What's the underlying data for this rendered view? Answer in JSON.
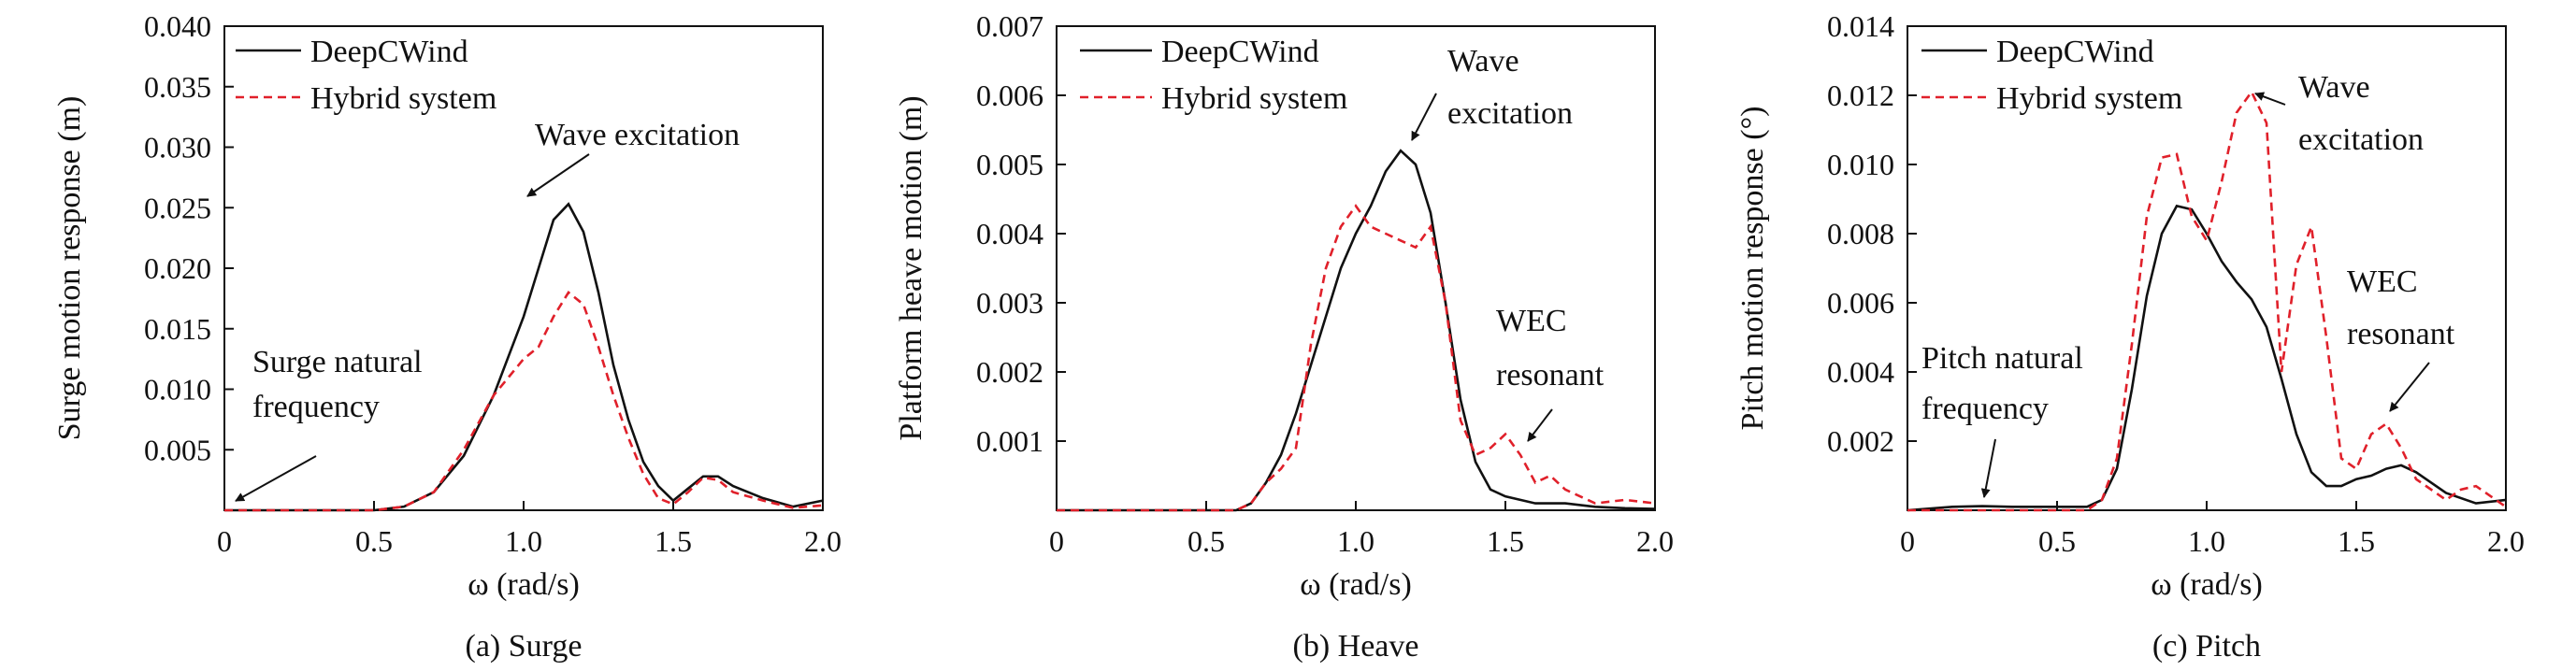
{
  "colors": {
    "deepcwind": "#111111",
    "hybrid": "#e0202a"
  },
  "chart_data": [
    {
      "type": "line",
      "title": "",
      "caption": "(a) Surge",
      "xlabel": "ω (rad/s)",
      "ylabel": "Surge motion response (m)",
      "xlim": [
        0,
        2.0
      ],
      "ylim": [
        0,
        0.04
      ],
      "xticks": [
        0,
        0.5,
        1.0,
        1.5,
        2.0
      ],
      "xtick_labels": [
        "0",
        "0.5",
        "1.0",
        "1.5",
        "2.0"
      ],
      "yticks": [
        0.005,
        0.01,
        0.015,
        0.02,
        0.025,
        0.03,
        0.035,
        0.04
      ],
      "ytick_labels": [
        "0.005",
        "0.010",
        "0.015",
        "0.020",
        "0.025",
        "0.030",
        "0.035",
        "0.040"
      ],
      "legend": {
        "position": "top-left",
        "entries": [
          "DeepCWind",
          "Hybrid system"
        ]
      },
      "annotations": [
        {
          "lines": [
            "Wave excitation"
          ],
          "target": [
            1.17,
            0.0255
          ]
        },
        {
          "lines": [
            "Surge natural",
            "frequency"
          ],
          "target": [
            0.05,
            0.0005
          ]
        }
      ],
      "series": [
        {
          "name": "DeepCWind",
          "x": [
            0,
            0.5,
            0.6,
            0.7,
            0.8,
            0.9,
            1.0,
            1.05,
            1.1,
            1.15,
            1.2,
            1.25,
            1.3,
            1.35,
            1.4,
            1.45,
            1.5,
            1.55,
            1.6,
            1.65,
            1.7,
            1.8,
            1.9,
            2.0
          ],
          "y": [
            0,
            0,
            0.0003,
            0.0015,
            0.0045,
            0.0095,
            0.016,
            0.02,
            0.024,
            0.0253,
            0.023,
            0.018,
            0.012,
            0.0075,
            0.004,
            0.002,
            0.0008,
            0.0018,
            0.0028,
            0.0028,
            0.002,
            0.001,
            0.0003,
            0.0008
          ]
        },
        {
          "name": "Hybrid system",
          "x": [
            0,
            0.5,
            0.6,
            0.7,
            0.8,
            0.9,
            1.0,
            1.05,
            1.1,
            1.15,
            1.2,
            1.25,
            1.3,
            1.35,
            1.4,
            1.45,
            1.5,
            1.55,
            1.6,
            1.65,
            1.7,
            1.8,
            1.9,
            2.0
          ],
          "y": [
            0,
            0,
            0.0003,
            0.0015,
            0.005,
            0.0095,
            0.0125,
            0.0135,
            0.016,
            0.018,
            0.017,
            0.0135,
            0.0095,
            0.006,
            0.003,
            0.001,
            0.0005,
            0.0015,
            0.0027,
            0.0025,
            0.0015,
            0.0008,
            0.0002,
            0.0004
          ]
        }
      ]
    },
    {
      "type": "line",
      "title": "",
      "caption": "(b) Heave",
      "xlabel": "ω (rad/s)",
      "ylabel": "Platform heave motion (m)",
      "xlim": [
        0,
        2.0
      ],
      "ylim": [
        0,
        0.007
      ],
      "xticks": [
        0,
        0.5,
        1.0,
        1.5,
        2.0
      ],
      "xtick_labels": [
        "0",
        "0.5",
        "1.0",
        "1.5",
        "2.0"
      ],
      "yticks": [
        0.001,
        0.002,
        0.003,
        0.004,
        0.005,
        0.006,
        0.007
      ],
      "ytick_labels": [
        "0.001",
        "0.002",
        "0.003",
        "0.004",
        "0.005",
        "0.006",
        "0.007"
      ],
      "legend": {
        "position": "top-left",
        "entries": [
          "DeepCWind",
          "Hybrid system"
        ]
      },
      "annotations": [
        {
          "lines": [
            "Wave",
            "excitation"
          ],
          "target": [
            1.18,
            0.0052
          ]
        },
        {
          "lines": [
            "WEC",
            "resonant"
          ],
          "target": [
            1.5,
            0.0008
          ]
        }
      ],
      "series": [
        {
          "name": "DeepCWind",
          "x": [
            0,
            0.6,
            0.65,
            0.7,
            0.75,
            0.8,
            0.85,
            0.9,
            0.95,
            1.0,
            1.05,
            1.1,
            1.15,
            1.2,
            1.25,
            1.3,
            1.35,
            1.4,
            1.45,
            1.5,
            1.6,
            1.7,
            1.8,
            1.9,
            2.0
          ],
          "y": [
            0,
            0,
            0.0001,
            0.0004,
            0.0008,
            0.0014,
            0.0021,
            0.0028,
            0.0035,
            0.004,
            0.0044,
            0.0049,
            0.0052,
            0.005,
            0.0043,
            0.003,
            0.0016,
            0.0007,
            0.0003,
            0.0002,
            0.0001,
            0.0001,
            5e-05,
            3e-05,
            2e-05
          ]
        },
        {
          "name": "Hybrid system",
          "x": [
            0,
            0.6,
            0.65,
            0.7,
            0.75,
            0.8,
            0.85,
            0.9,
            0.95,
            1.0,
            1.05,
            1.1,
            1.15,
            1.2,
            1.25,
            1.3,
            1.35,
            1.4,
            1.45,
            1.5,
            1.55,
            1.6,
            1.65,
            1.7,
            1.8,
            1.9,
            2.0
          ],
          "y": [
            0,
            0,
            0.0001,
            0.0004,
            0.0006,
            0.0009,
            0.0024,
            0.0035,
            0.0041,
            0.0044,
            0.0041,
            0.004,
            0.0039,
            0.0038,
            0.0041,
            0.003,
            0.0013,
            0.0008,
            0.0009,
            0.0011,
            0.0008,
            0.0004,
            0.0005,
            0.0003,
            0.0001,
            0.00015,
            0.0001
          ]
        }
      ]
    },
    {
      "type": "line",
      "title": "",
      "caption": "(c) Pitch",
      "xlabel": "ω (rad/s)",
      "ylabel": "Pitch motion response (°)",
      "xlim": [
        0,
        2.0
      ],
      "ylim": [
        0,
        0.014
      ],
      "xticks": [
        0,
        0.5,
        1.0,
        1.5,
        2.0
      ],
      "xtick_labels": [
        "0",
        "0.5",
        "1.0",
        "1.5",
        "2.0"
      ],
      "yticks": [
        0.002,
        0.004,
        0.006,
        0.008,
        0.01,
        0.012,
        0.014
      ],
      "ytick_labels": [
        "0.002",
        "0.004",
        "0.006",
        "0.008",
        "0.010",
        "0.012",
        "0.014"
      ],
      "legend": {
        "position": "top-left",
        "entries": [
          "DeepCWind",
          "Hybrid system"
        ]
      },
      "annotations": [
        {
          "lines": [
            "Wave",
            "excitation"
          ],
          "target": [
            1.17,
            0.0121
          ]
        },
        {
          "lines": [
            "WEC",
            "resonant"
          ],
          "target": [
            1.58,
            0.0027
          ]
        },
        {
          "lines": [
            "Pitch natural",
            "frequency"
          ],
          "target": [
            0.27,
            0.0001
          ]
        }
      ],
      "series": [
        {
          "name": "DeepCWind",
          "x": [
            0,
            0.15,
            0.25,
            0.35,
            0.6,
            0.65,
            0.7,
            0.75,
            0.8,
            0.85,
            0.9,
            0.95,
            1.0,
            1.05,
            1.1,
            1.15,
            1.2,
            1.25,
            1.3,
            1.35,
            1.4,
            1.45,
            1.5,
            1.55,
            1.6,
            1.65,
            1.7,
            1.8,
            1.9,
            2.0
          ],
          "y": [
            0,
            0.0001,
            0.00012,
            0.0001,
            0.0001,
            0.0003,
            0.0012,
            0.0035,
            0.0062,
            0.008,
            0.0088,
            0.0087,
            0.008,
            0.0072,
            0.0066,
            0.0061,
            0.0053,
            0.0038,
            0.0022,
            0.0011,
            0.0007,
            0.0007,
            0.0009,
            0.001,
            0.0012,
            0.0013,
            0.0011,
            0.0005,
            0.0002,
            0.0003
          ]
        },
        {
          "name": "Hybrid system",
          "x": [
            0,
            0.6,
            0.65,
            0.7,
            0.75,
            0.8,
            0.85,
            0.9,
            0.95,
            1.0,
            1.05,
            1.1,
            1.15,
            1.2,
            1.25,
            1.3,
            1.35,
            1.4,
            1.45,
            1.5,
            1.55,
            1.6,
            1.65,
            1.7,
            1.8,
            1.85,
            1.9,
            1.95,
            2.0
          ],
          "y": [
            0,
            0,
            0.0003,
            0.0015,
            0.0048,
            0.0085,
            0.0102,
            0.0103,
            0.0085,
            0.0078,
            0.0095,
            0.0115,
            0.0121,
            0.0112,
            0.004,
            0.0071,
            0.0082,
            0.005,
            0.0015,
            0.0012,
            0.0022,
            0.0025,
            0.0018,
            0.0009,
            0.0003,
            0.0006,
            0.0007,
            0.0004,
            0.0001
          ]
        }
      ]
    }
  ]
}
